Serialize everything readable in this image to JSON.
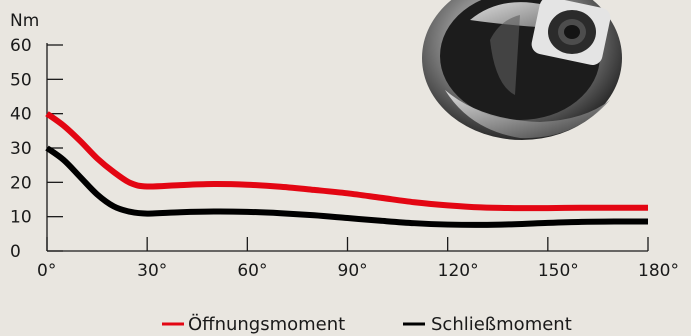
{
  "chart_data": {
    "type": "line",
    "title": "",
    "xlabel": "",
    "ylabel": "Nm",
    "x_ticks": [
      "0°",
      "30°",
      "60°",
      "90°",
      "120°",
      "150°",
      "180°"
    ],
    "y_ticks": [
      "0",
      "10",
      "20",
      "30",
      "40",
      "50",
      "60"
    ],
    "xlim": [
      0,
      180
    ],
    "ylim": [
      0,
      60
    ],
    "grid": false,
    "legend_position": "bottom",
    "series": [
      {
        "name": "Öffnungsmoment",
        "color": "#e30613",
        "x": [
          0,
          5,
          10,
          15,
          20,
          25,
          30,
          40,
          50,
          60,
          70,
          80,
          90,
          100,
          110,
          120,
          130,
          140,
          150,
          160,
          170,
          180
        ],
        "y": [
          40,
          36.5,
          32,
          27,
          23,
          19.8,
          18.8,
          19.2,
          19.5,
          19.3,
          18.7,
          17.8,
          16.8,
          15.5,
          14.2,
          13.3,
          12.7,
          12.5,
          12.5,
          12.6,
          12.6,
          12.6
        ]
      },
      {
        "name": "Schließmoment",
        "color": "#000000",
        "x": [
          0,
          5,
          10,
          15,
          20,
          25,
          30,
          40,
          50,
          60,
          70,
          80,
          90,
          100,
          110,
          120,
          130,
          140,
          150,
          160,
          170,
          180
        ],
        "y": [
          30,
          26.5,
          21.5,
          16.5,
          13,
          11.4,
          10.9,
          11.3,
          11.5,
          11.4,
          11,
          10.4,
          9.6,
          8.8,
          8.1,
          7.7,
          7.6,
          7.8,
          8.2,
          8.5,
          8.6,
          8.6
        ]
      }
    ]
  },
  "image": {
    "icon": "valve-handle-photo"
  }
}
